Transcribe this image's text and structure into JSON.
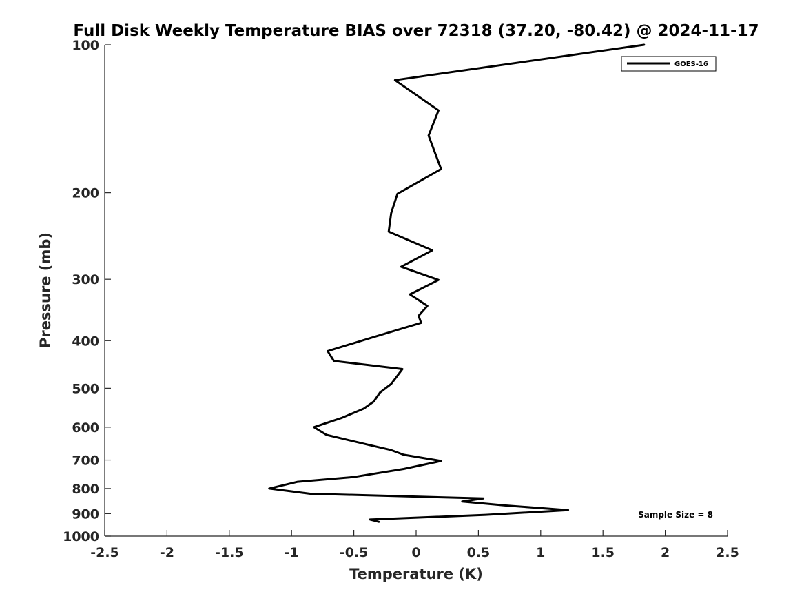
{
  "chart_data": {
    "type": "line",
    "title": "Full Disk Weekly Temperature BIAS over 72318 (37.20, -80.42) @ 2024-11-17",
    "xlabel": "Temperature (K)",
    "ylabel": "Pressure (mb)",
    "xlim": [
      -2.5,
      2.5
    ],
    "ylim": [
      100,
      1000
    ],
    "y_scale": "log",
    "y_reversed": true,
    "x_ticks": [
      -2.5,
      -2,
      -1.5,
      -1,
      -0.5,
      0,
      0.5,
      1,
      1.5,
      2,
      2.5
    ],
    "x_tick_labels": [
      "-2.5",
      "-2",
      "-1.5",
      "-1",
      "-0.5",
      "0",
      "0.5",
      "1",
      "1.5",
      "2",
      "2.5"
    ],
    "y_ticks": [
      100,
      200,
      300,
      400,
      500,
      600,
      700,
      800,
      900,
      1000
    ],
    "y_tick_labels": [
      "100",
      "200",
      "300",
      "400",
      "500",
      "600",
      "700",
      "800",
      "900",
      "1000"
    ],
    "grid": false,
    "legend_position": "top-right",
    "annotation": "Sample Size = 8",
    "series": [
      {
        "name": "GOES-16",
        "color": "#000000",
        "points": [
          [
            1.83,
            100
          ],
          [
            -0.17,
            118
          ],
          [
            0.18,
            136
          ],
          [
            0.1,
            153
          ],
          [
            0.2,
            179
          ],
          [
            -0.15,
            201
          ],
          [
            -0.2,
            220
          ],
          [
            -0.22,
            240
          ],
          [
            0.13,
            262
          ],
          [
            -0.12,
            283
          ],
          [
            0.18,
            301
          ],
          [
            -0.05,
            322
          ],
          [
            0.09,
            340
          ],
          [
            0.02,
            356
          ],
          [
            0.04,
            368
          ],
          [
            -0.38,
            396
          ],
          [
            -0.71,
            420
          ],
          [
            -0.66,
            440
          ],
          [
            -0.11,
            457
          ],
          [
            -0.2,
            490
          ],
          [
            -0.29,
            510
          ],
          [
            -0.34,
            532
          ],
          [
            -0.42,
            550
          ],
          [
            -0.6,
            575
          ],
          [
            -0.82,
            600
          ],
          [
            -0.72,
            622
          ],
          [
            -0.38,
            652
          ],
          [
            -0.2,
            668
          ],
          [
            -0.1,
            683
          ],
          [
            0.2,
            703
          ],
          [
            -0.1,
            730
          ],
          [
            -0.5,
            758
          ],
          [
            -0.95,
            775
          ],
          [
            -1.18,
            800
          ],
          [
            -0.85,
            820
          ],
          [
            0.54,
            838
          ],
          [
            0.37,
            850
          ],
          [
            0.72,
            866
          ],
          [
            1.22,
            885
          ],
          [
            0.56,
            905
          ],
          [
            -0.37,
            925
          ],
          [
            -0.3,
            935
          ]
        ]
      }
    ]
  }
}
